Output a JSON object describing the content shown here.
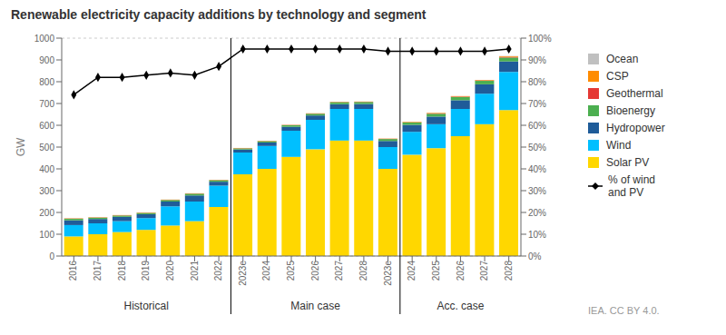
{
  "chart_data": {
    "type": "bar",
    "stacked": true,
    "grid": true,
    "title": "Renewable electricity capacity additions by technology and segment",
    "y_label": "GW",
    "source": "IEA. CC BY 4.0.",
    "categories": [
      "2016",
      "2017",
      "2018",
      "2019",
      "2020",
      "2021",
      "2022",
      "2023e",
      "2024",
      "2025",
      "2026",
      "2027",
      "2028",
      "2023e",
      "2024",
      "2025",
      "2026",
      "2027",
      "2028"
    ],
    "groups": [
      {
        "label": "Historical",
        "count": 7
      },
      {
        "label": "Main case",
        "count": 7
      },
      {
        "label": "Acc. case",
        "count": 5
      }
    ],
    "ylim": [
      0,
      1000
    ],
    "yticks": [
      0,
      100,
      200,
      300,
      400,
      500,
      600,
      700,
      800,
      900,
      1000
    ],
    "y2lim": [
      0,
      100
    ],
    "y2ticks": [
      {
        "value": 0,
        "label": "0%"
      },
      {
        "value": 10,
        "label": "10%"
      },
      {
        "value": 20,
        "label": "20%"
      },
      {
        "value": 30,
        "label": "30%"
      },
      {
        "value": 40,
        "label": "40%"
      },
      {
        "value": 50,
        "label": "50%"
      },
      {
        "value": 60,
        "label": "60%"
      },
      {
        "value": 70,
        "label": "70%"
      },
      {
        "value": 80,
        "label": "80%"
      },
      {
        "value": 90,
        "label": "90%"
      },
      {
        "value": 100,
        "label": "100%"
      }
    ],
    "series": [
      {
        "name": "Solar PV",
        "color": "#FFD700",
        "values": [
          90,
          100,
          110,
          120,
          140,
          160,
          225,
          375,
          400,
          455,
          490,
          530,
          530,
          400,
          465,
          495,
          550,
          605,
          670
        ]
      },
      {
        "name": "Wind",
        "color": "#00BFFF",
        "values": [
          52,
          50,
          50,
          54,
          88,
          90,
          98,
          100,
          105,
          120,
          135,
          145,
          145,
          100,
          105,
          110,
          125,
          140,
          175
        ]
      },
      {
        "name": "Hydropower",
        "color": "#1F5C99",
        "values": [
          22,
          20,
          20,
          18,
          22,
          28,
          18,
          14,
          16,
          18,
          20,
          22,
          23,
          28,
          32,
          35,
          40,
          43,
          48
        ]
      },
      {
        "name": "Bioenergy",
        "color": "#4CAF50",
        "values": [
          7,
          6,
          6,
          6,
          7,
          8,
          7,
          5,
          6,
          7,
          8,
          9,
          9,
          9,
          11,
          13,
          15,
          16,
          18
        ]
      },
      {
        "name": "Geothermal",
        "color": "#E53935",
        "values": [
          1,
          1,
          1,
          1,
          1,
          1,
          1,
          1,
          1,
          1,
          1,
          1,
          1,
          1,
          1,
          2,
          2,
          2,
          3
        ]
      },
      {
        "name": "CSP",
        "color": "#FF8C00",
        "values": [
          1,
          1,
          1,
          1,
          1,
          1,
          1,
          1,
          1,
          1,
          1,
          1,
          1,
          1,
          2,
          2,
          2,
          2,
          3
        ]
      },
      {
        "name": "Ocean",
        "color": "#C0C0C0",
        "values": [
          0,
          0,
          0,
          0,
          0,
          0,
          0,
          0,
          0,
          0,
          0,
          0,
          0,
          0,
          0,
          0,
          0,
          0,
          1
        ]
      },
      {
        "name": "% of wind\nand PV",
        "type": "line",
        "axis": "y2",
        "color": "#000000",
        "marker": "diamond",
        "values": [
          74,
          82,
          82,
          83,
          84,
          83,
          87,
          95,
          95,
          95,
          95,
          95,
          95,
          94,
          94,
          94,
          94,
          94,
          95
        ]
      }
    ]
  }
}
